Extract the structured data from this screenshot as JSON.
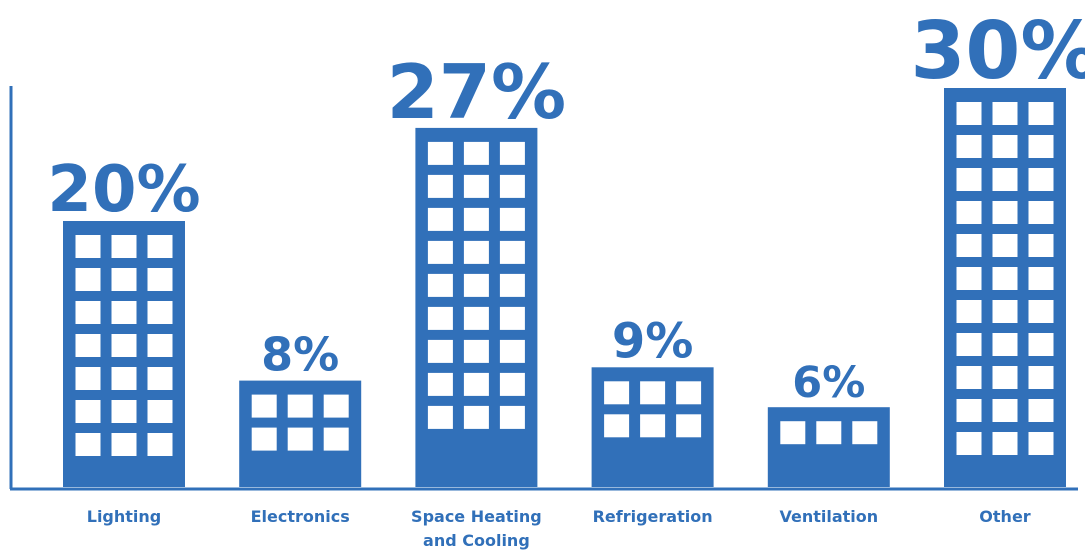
{
  "chart_data": {
    "type": "bar",
    "title": "",
    "xlabel": "",
    "ylabel": "",
    "ylim": [
      0,
      33
    ],
    "grid": false,
    "legend": "none",
    "colors": {
      "bar": "#3170b9",
      "window": "#ffffff",
      "axis": "#3170b9"
    },
    "categories": [
      {
        "name": "Lighting",
        "lines": [
          "Lighting"
        ]
      },
      {
        "name": "Electronics",
        "lines": [
          "Electronics"
        ]
      },
      {
        "name": "Space Heating and Cooling",
        "lines": [
          "Space Heating",
          "and Cooling"
        ]
      },
      {
        "name": "Refrigeration",
        "lines": [
          "Refrigeration"
        ]
      },
      {
        "name": "Ventilation",
        "lines": [
          "Ventilation"
        ]
      },
      {
        "name": "Other",
        "lines": [
          "Other"
        ]
      }
    ],
    "values": [
      20,
      8,
      27,
      9,
      6,
      30
    ],
    "value_labels": [
      "20%",
      "8%",
      "27%",
      "9%",
      "6%",
      "30%"
    ]
  }
}
